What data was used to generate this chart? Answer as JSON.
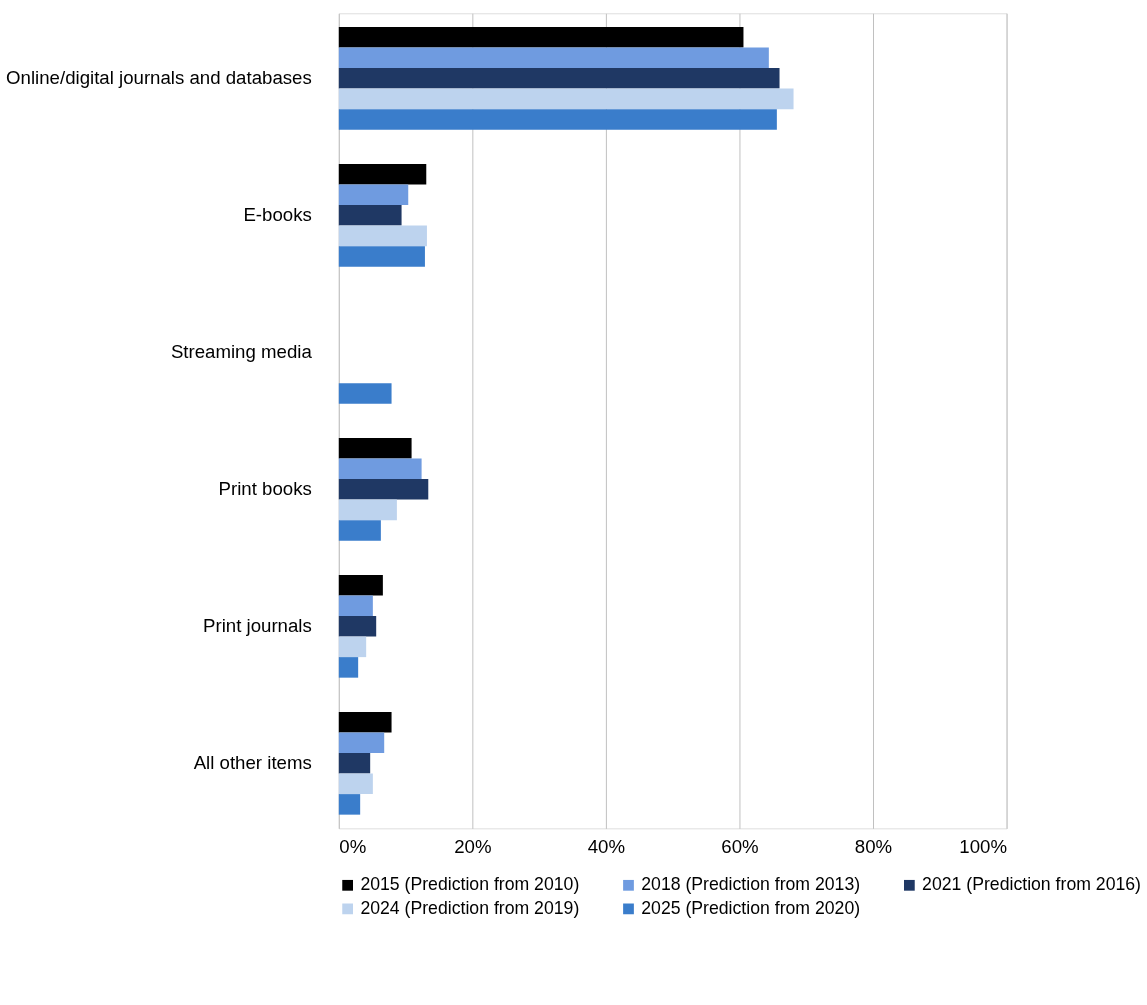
{
  "chart_data": {
    "type": "bar",
    "orientation": "horizontal",
    "categories": [
      "Online/digital journals and databases",
      "E-books",
      "Streaming media",
      "Print books",
      "Print journals",
      "All other items"
    ],
    "series": [
      {
        "name": "2015 (Prediction from 2010)",
        "color": "#000000",
        "values": [
          60.6,
          13.1,
          null,
          10.9,
          6.6,
          7.9
        ]
      },
      {
        "name": "2018 (Prediction from 2013)",
        "color": "#6f9be0",
        "values": [
          64.4,
          10.4,
          null,
          12.4,
          5.1,
          6.8
        ]
      },
      {
        "name": "2021 (Prediction from 2016)",
        "color": "#1f3864",
        "values": [
          66.0,
          9.4,
          null,
          13.4,
          5.6,
          4.7
        ]
      },
      {
        "name": "2024 (Prediction from 2019)",
        "color": "#bdd3ee",
        "values": [
          68.1,
          13.2,
          null,
          8.7,
          4.1,
          5.1
        ]
      },
      {
        "name": "2025 (Prediction from 2020)",
        "color": "#3a7dcb",
        "values": [
          65.6,
          12.9,
          7.9,
          6.3,
          2.9,
          3.2
        ]
      }
    ],
    "xlim": [
      0,
      100
    ],
    "xticks": [
      {
        "value": 0,
        "label": "0%"
      },
      {
        "value": 20,
        "label": "20%"
      },
      {
        "value": 40,
        "label": "40%"
      },
      {
        "value": 60,
        "label": "60%"
      },
      {
        "value": 80,
        "label": "80%"
      },
      {
        "value": 100,
        "label": "100%"
      }
    ],
    "grid": "x",
    "legend": "bottom"
  }
}
